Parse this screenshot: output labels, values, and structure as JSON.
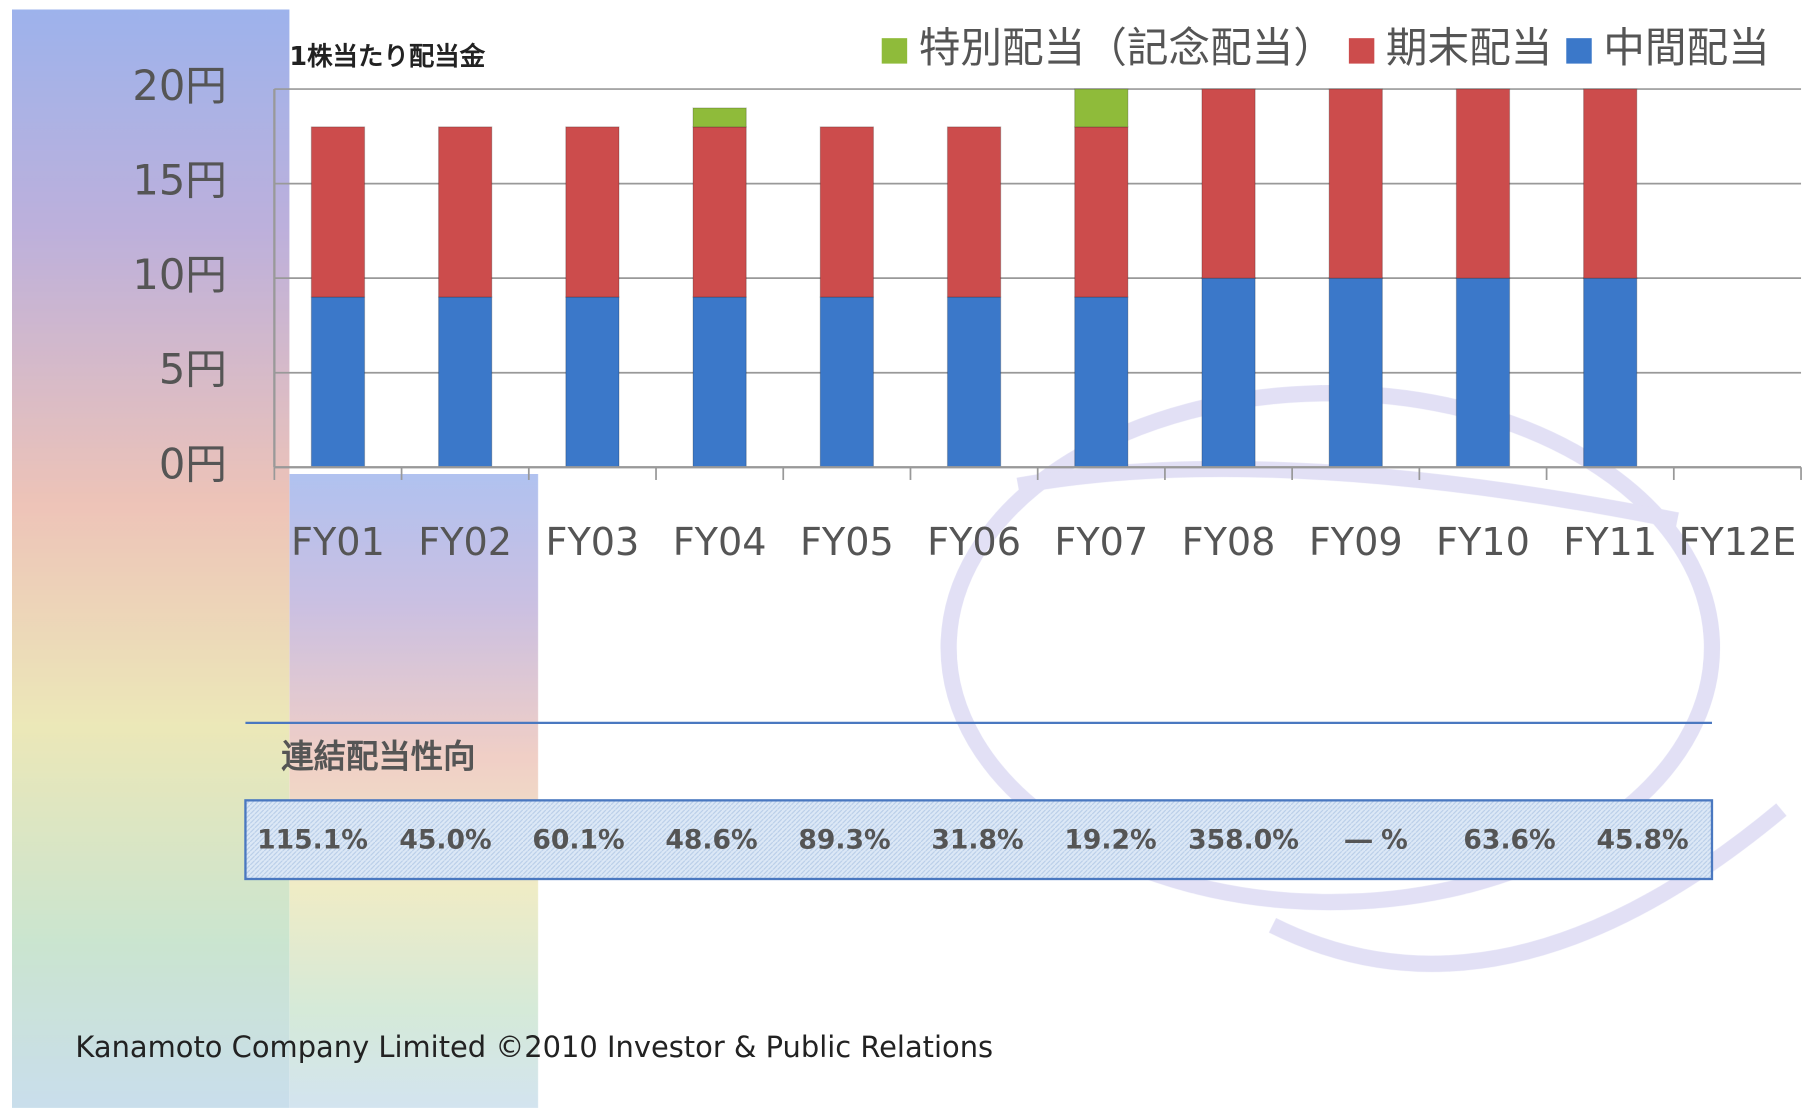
{
  "chart_data": {
    "type": "bar",
    "stacked": true,
    "title": "1株当たり配当金",
    "categories": [
      "FY01",
      "FY02",
      "FY03",
      "FY04",
      "FY05",
      "FY06",
      "FY07",
      "FY08",
      "FY09",
      "FY10",
      "FY11",
      "FY12E"
    ],
    "series": [
      {
        "name": "中間配当",
        "color": "#3b78c9",
        "values": [
          9,
          9,
          9,
          9,
          9,
          9,
          9,
          10,
          10,
          10,
          10,
          null
        ]
      },
      {
        "name": "期末配当",
        "color": "#cc4c4c",
        "values": [
          9,
          9,
          9,
          9,
          9,
          9,
          9,
          10,
          10,
          10,
          10,
          null
        ]
      },
      {
        "name": "特別配当（記念配当）",
        "color": "#8fbb3a",
        "values": [
          null,
          null,
          null,
          1,
          null,
          null,
          2,
          null,
          null,
          null,
          null,
          null
        ]
      }
    ],
    "ylim": [
      0,
      20
    ],
    "yticks": [
      {
        "value": 0,
        "label": "0円"
      },
      {
        "value": 5,
        "label": "5円"
      },
      {
        "value": 10,
        "label": "10円"
      },
      {
        "value": 15,
        "label": "15円"
      },
      {
        "value": 20,
        "label": "20円"
      }
    ],
    "grid": true,
    "legend": "top"
  },
  "payout": {
    "title": "連結配当性向",
    "values": [
      "115.1%",
      "45.0%",
      "60.1%",
      "48.6%",
      "89.3%",
      "31.8%",
      "19.2%",
      "358.0%",
      "― %",
      "63.6%",
      "45.8%"
    ]
  },
  "footer": "Kanamoto Company Limited ©2010 Investor & Public Relations"
}
